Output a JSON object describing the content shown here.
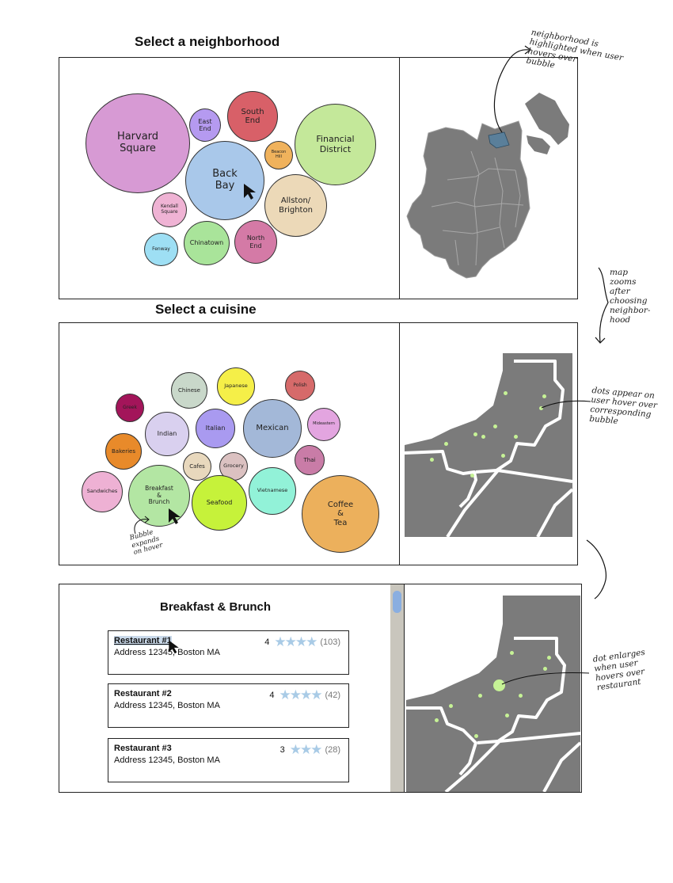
{
  "section1": {
    "title": "Select a neighborhood",
    "bubbles": [
      {
        "id": "harvard",
        "label": "Harvard\nSquare",
        "color": "#d79ad4"
      },
      {
        "id": "east-end",
        "label": "East\nEnd",
        "color": "#b59af0"
      },
      {
        "id": "south-end",
        "label": "South\nEnd",
        "color": "#d86068"
      },
      {
        "id": "financial",
        "label": "Financial\nDistrict",
        "color": "#c4e89a"
      },
      {
        "id": "beacon-hill",
        "label": "Beacon\nHill",
        "color": "#f0b25c"
      },
      {
        "id": "back-bay",
        "label": "Back\nBay",
        "color": "#a9c8ea"
      },
      {
        "id": "kendall",
        "label": "Kendall\nSquare",
        "color": "#efb3d4"
      },
      {
        "id": "allston",
        "label": "Allston/\nBrighton",
        "color": "#ecd9b8"
      },
      {
        "id": "fenway",
        "label": "Fenway",
        "color": "#9edff4"
      },
      {
        "id": "chinatown",
        "label": "Chinatown",
        "color": "#a9e49a"
      },
      {
        "id": "north-end",
        "label": "North\nEnd",
        "color": "#d47aa6"
      }
    ],
    "annotation": "neighborhood is\nhighlighted when user\nhovers over\nbubble"
  },
  "zoom_annotation": "map\nzooms\nafter\nchoosing\nneighbor-\nhood",
  "section2": {
    "title": "Select a cuisine",
    "bubbles": [
      {
        "id": "chinese",
        "label": "Chinese",
        "color": "#c9d8ca"
      },
      {
        "id": "japanese",
        "label": "Japanese",
        "color": "#f5ef48"
      },
      {
        "id": "polish",
        "label": "Polish",
        "color": "#d66a6a"
      },
      {
        "id": "greek",
        "label": "Greek",
        "color": "#a3155a"
      },
      {
        "id": "indian",
        "label": "Indian",
        "color": "#d9d0ef"
      },
      {
        "id": "italian",
        "label": "Italian",
        "color": "#a99af0"
      },
      {
        "id": "mexican",
        "label": "Mexican",
        "color": "#a3b8d8"
      },
      {
        "id": "mideastern",
        "label": "Mideastern",
        "color": "#e3a5e0"
      },
      {
        "id": "bakeries",
        "label": "Bakeries",
        "color": "#e88a2a"
      },
      {
        "id": "cafes",
        "label": "Cafes",
        "color": "#e8d8bd"
      },
      {
        "id": "grocery",
        "label": "Grocery",
        "color": "#dbc1c1"
      },
      {
        "id": "thai",
        "label": "Thai",
        "color": "#c97ca7"
      },
      {
        "id": "sandwiches",
        "label": "Sandwiches",
        "color": "#eeb1d4"
      },
      {
        "id": "breakfast",
        "label": "Breakfast\n&\nBrunch",
        "color": "#b3e6a3"
      },
      {
        "id": "vietnamese",
        "label": "Vietnamese",
        "color": "#92f2d8"
      },
      {
        "id": "seafood",
        "label": "Seafood",
        "color": "#c6f23a"
      },
      {
        "id": "coffee",
        "label": "Coffee\n&\nTea",
        "color": "#ecb05c"
      }
    ],
    "bubble_note": "Bubble\nexpands\non hover",
    "annotation": "dots appear on\nuser hover over\ncorresponding\nbubble"
  },
  "section3": {
    "title": "Breakfast & Brunch",
    "restaurants": [
      {
        "name": "Restaurant #1",
        "address": "Address 12345, Boston MA",
        "rating": "4",
        "stars": "★★★★",
        "count": "(103)"
      },
      {
        "name": "Restaurant #2",
        "address": "Address 12345, Boston MA",
        "rating": "4",
        "stars": "★★★★",
        "count": "(42)"
      },
      {
        "name": "Restaurant #3",
        "address": "Address 12345, Boston MA",
        "rating": "3",
        "stars": "★★★",
        "count": "(28)"
      }
    ],
    "annotation": "dot enlarges\nwhen user\nhovers over\nrestaurant"
  },
  "colors": {
    "map_gray": "#7b7b7b",
    "highlight": "#5a7f9a",
    "dot": "#c6f296",
    "star": "#a9cbe6"
  }
}
